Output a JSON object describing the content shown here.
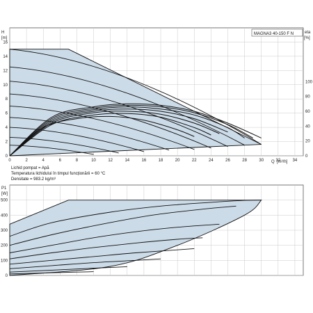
{
  "chart_data": [
    {
      "type": "line",
      "title": "MAGNA3 40-150 F N",
      "ylabel": "H",
      "yunit": "[m]",
      "y2label": "eta",
      "y2unit": "[%]",
      "xlabel": "Q",
      "xunit": "[m³/h]",
      "xlim": [
        0,
        35
      ],
      "ylim": [
        0,
        18
      ],
      "y2lim": [
        0,
        100
      ],
      "grid": true,
      "x_ticks": [
        "0",
        "2",
        "4",
        "6",
        "8",
        "10",
        "12",
        "14",
        "16",
        "18",
        "20",
        "22",
        "24",
        "26",
        "28",
        "30",
        "32",
        "34"
      ],
      "y_ticks": [
        "0",
        "2",
        "4",
        "6",
        "8",
        "10",
        "12",
        "14",
        "16"
      ],
      "y2_ticks": [
        "0",
        "20",
        "40",
        "60",
        "80",
        "100"
      ],
      "envelope": {
        "x": [
          0,
          0,
          7,
          30,
          30,
          0
        ],
        "y": [
          0,
          15,
          15,
          1.6,
          1.6,
          0
        ]
      },
      "series": [
        {
          "x": [
            0,
            30
          ],
          "y": [
            15,
            1.6
          ]
        },
        {
          "x": [
            0,
            28
          ],
          "y": [
            12.5,
            1.5
          ]
        },
        {
          "x": [
            0,
            26
          ],
          "y": [
            10.5,
            1.3
          ]
        },
        {
          "x": [
            0,
            24
          ],
          "y": [
            8.7,
            1.1
          ]
        },
        {
          "x": [
            0,
            22
          ],
          "y": [
            7.0,
            0.9
          ]
        },
        {
          "x": [
            0,
            19
          ],
          "y": [
            5.4,
            0.8
          ]
        },
        {
          "x": [
            0,
            16
          ],
          "y": [
            4.0,
            0.6
          ]
        },
        {
          "x": [
            0,
            13
          ],
          "y": [
            2.6,
            0.4
          ]
        },
        {
          "x": [
            0,
            10
          ],
          "y": [
            1.5,
            0.2
          ]
        }
      ],
      "efficiency_y2": [
        {
          "x": [
            0,
            5,
            10,
            14,
            18,
            22,
            26,
            30
          ],
          "y": [
            0,
            52,
            66,
            70,
            68,
            60,
            44,
            24
          ]
        },
        {
          "x": [
            0,
            5,
            10,
            14,
            18,
            22,
            26,
            29
          ],
          "y": [
            0,
            50,
            64,
            68,
            66,
            58,
            42,
            24
          ]
        },
        {
          "x": [
            0,
            5,
            10,
            14,
            18,
            22,
            26,
            28
          ],
          "y": [
            0,
            48,
            62,
            66,
            63,
            55,
            38,
            24
          ]
        },
        {
          "x": [
            0,
            5,
            10,
            14,
            18,
            22,
            26
          ],
          "y": [
            0,
            46,
            60,
            63,
            60,
            50,
            32
          ]
        },
        {
          "x": [
            0,
            5,
            10,
            14,
            18,
            22,
            25
          ],
          "y": [
            0,
            44,
            58,
            60,
            56,
            44,
            30
          ]
        },
        {
          "x": [
            0,
            5,
            10,
            14,
            18,
            22,
            24
          ],
          "y": [
            0,
            42,
            55,
            57,
            52,
            38,
            28
          ]
        },
        {
          "x": [
            0,
            4,
            8,
            12,
            16,
            20,
            22
          ],
          "y": [
            0,
            38,
            50,
            53,
            48,
            35,
            26
          ]
        }
      ],
      "notes": [
        "Lichid pompat = Apă",
        "Temperatura lichidului în timpul funcționării = 60 °C",
        "Densitate = 983.2 kg/m³"
      ]
    },
    {
      "type": "line",
      "ylabel": "P1",
      "yunit": "[W]",
      "xlim": [
        0,
        35
      ],
      "ylim": [
        0,
        600
      ],
      "grid": true,
      "y_ticks": [
        "0",
        "100",
        "200",
        "300",
        "400",
        "500"
      ],
      "envelope": {
        "x": [
          0,
          0,
          7,
          30,
          28,
          20,
          12,
          0
        ],
        "y": [
          0,
          340,
          500,
          500,
          400,
          200,
          60,
          0
        ]
      },
      "series": [
        {
          "x": [
            0,
            5,
            12,
            18,
            24,
            28,
            30
          ],
          "y": [
            260,
            350,
            420,
            460,
            485,
            498,
            500
          ]
        },
        {
          "x": [
            0,
            5,
            11,
            17,
            23,
            27
          ],
          "y": [
            200,
            270,
            340,
            400,
            440,
            460
          ]
        },
        {
          "x": [
            0,
            5,
            10,
            15,
            20,
            25
          ],
          "y": [
            150,
            200,
            250,
            290,
            320,
            340
          ]
        },
        {
          "x": [
            0,
            5,
            10,
            15,
            20,
            23
          ],
          "y": [
            110,
            150,
            185,
            215,
            240,
            250
          ]
        },
        {
          "x": [
            0,
            5,
            10,
            15,
            20,
            22
          ],
          "y": [
            75,
            100,
            125,
            150,
            170,
            178
          ]
        },
        {
          "x": [
            0,
            5,
            10,
            15,
            18
          ],
          "y": [
            45,
            65,
            85,
            100,
            110
          ]
        },
        {
          "x": [
            0,
            5,
            10,
            14
          ],
          "y": [
            22,
            35,
            48,
            58
          ]
        },
        {
          "x": [
            0,
            4,
            8,
            10
          ],
          "y": [
            10,
            16,
            22,
            25
          ]
        }
      ]
    }
  ]
}
